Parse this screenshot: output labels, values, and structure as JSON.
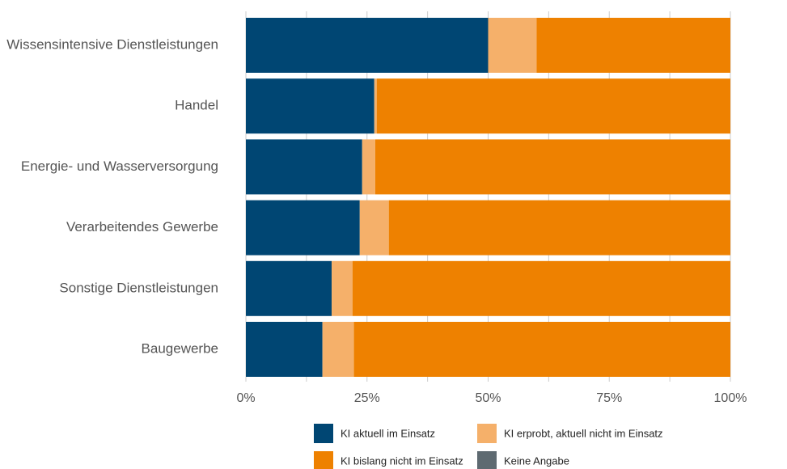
{
  "chart_data": {
    "type": "bar",
    "orientation": "horizontal",
    "stacked": "percent",
    "categories": [
      "Wissensintensive Dienstleistungen",
      "Handel",
      "Energie- und Wasserversorgung",
      "Verarbeitendes Gewerbe",
      "Sonstige Dienstleistungen",
      "Baugewerbe"
    ],
    "series": [
      {
        "name": "KI aktuell im Einsatz",
        "color": "#004673",
        "values": [
          50,
          26.5,
          24,
          23.5,
          17.7,
          15.8
        ]
      },
      {
        "name": "KI erprobt, aktuell nicht im Einsatz",
        "color": "#F5B06A",
        "values": [
          10,
          0.5,
          2.7,
          6,
          4.3,
          6.5
        ]
      },
      {
        "name": "KI bislang nicht im Einsatz",
        "color": "#EE8100",
        "values": [
          40,
          73,
          73.3,
          70.5,
          78,
          77.7
        ]
      },
      {
        "name": "Keine Angabe",
        "color": "#5E6A71",
        "values": [
          0,
          0,
          0,
          0,
          0,
          0
        ]
      }
    ],
    "xlim": [
      0,
      100
    ],
    "x_ticks": [
      "0%",
      "25%",
      "50%",
      "75%",
      "100%"
    ],
    "grid": "vertical",
    "legend_position": "bottom"
  }
}
